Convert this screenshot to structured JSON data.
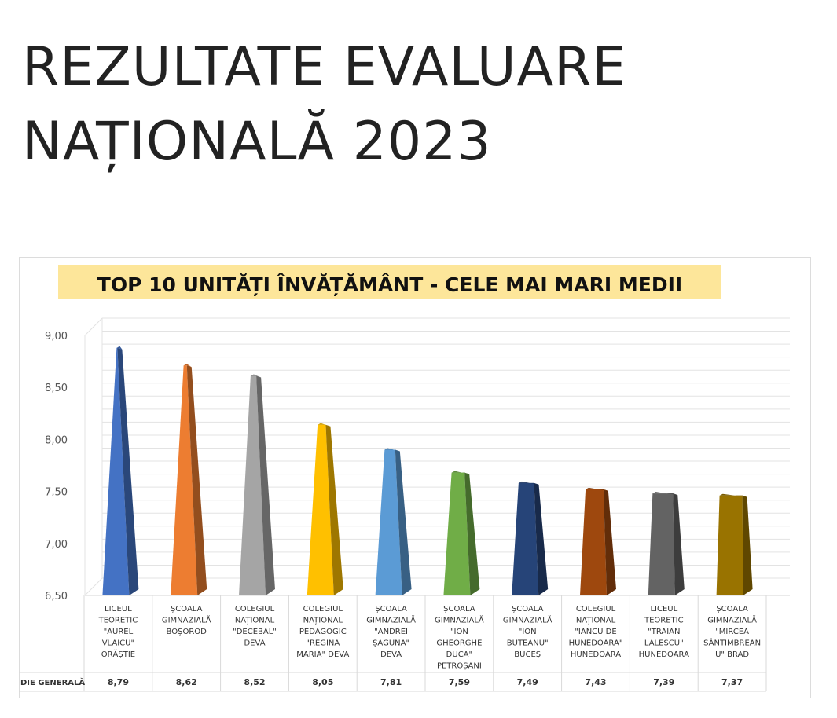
{
  "page": {
    "title_line1": "REZULTATE EVALUARE",
    "title_line2": "NAȚIONALĂ 2023"
  },
  "chart_data": {
    "type": "bar",
    "title": "TOP 10 UNITĂȚI ÎNVĂȚĂMÂNT - CELE MAI MARI MEDII",
    "title_highlight_color": "#fde69a",
    "ylim": [
      6.5,
      9.0
    ],
    "yticks": [
      "9,00",
      "8,50",
      "8,00",
      "7,50",
      "7,00",
      "6,50"
    ],
    "ytick_values": [
      9.0,
      8.5,
      8.0,
      7.5,
      7.0,
      6.5
    ],
    "grid": true,
    "table_row_label": "DIE GENERALĂ",
    "categories": [
      [
        "LICEUL",
        "TEORETIC",
        "\"AUREL",
        "VLAICU\"",
        "ORĂȘTIE"
      ],
      [
        "ȘCOALA",
        "GIMNAZIALĂ",
        "BOȘOROD"
      ],
      [
        "COLEGIUL",
        "NAȚIONAL",
        "\"DECEBAL\"",
        "DEVA"
      ],
      [
        "COLEGIUL",
        "NAȚIONAL",
        "PEDAGOGIC",
        "\"REGINA",
        "MARIA\" DEVA"
      ],
      [
        "ȘCOALA",
        "GIMNAZIALĂ",
        "\"ANDREI",
        "ȘAGUNA\"",
        "DEVA"
      ],
      [
        "ȘCOALA",
        "GIMNAZIALĂ",
        "\"ION",
        "GHEORGHE",
        "DUCA\"",
        "PETROȘANI"
      ],
      [
        "ȘCOALA",
        "GIMNAZIALĂ",
        "\"ION",
        "BUTEANU\"",
        "BUCEȘ"
      ],
      [
        "COLEGIUL",
        "NAȚIONAL",
        "\"IANCU DE",
        "HUNEDOARA\"",
        "HUNEDOARA"
      ],
      [
        "LICEUL",
        "TEORETIC",
        "\"TRAIAN",
        "LALESCU\"",
        "HUNEDOARA"
      ],
      [
        "ȘCOALA",
        "GIMNAZIALĂ",
        "\"MIRCEA",
        "SÂNTIMBREAN",
        "U\" BRAD"
      ]
    ],
    "values": [
      8.79,
      8.62,
      8.52,
      8.05,
      7.81,
      7.59,
      7.49,
      7.43,
      7.39,
      7.37
    ],
    "value_labels": [
      "8,79",
      "8,62",
      "8,52",
      "8,05",
      "7,81",
      "7,59",
      "7,49",
      "7,43",
      "7,39",
      "7,37"
    ],
    "colors": [
      "#4472c4",
      "#ed7d31",
      "#a5a5a5",
      "#ffc000",
      "#5b9bd5",
      "#70ad47",
      "#264478",
      "#9e480e",
      "#636363",
      "#997300"
    ]
  }
}
